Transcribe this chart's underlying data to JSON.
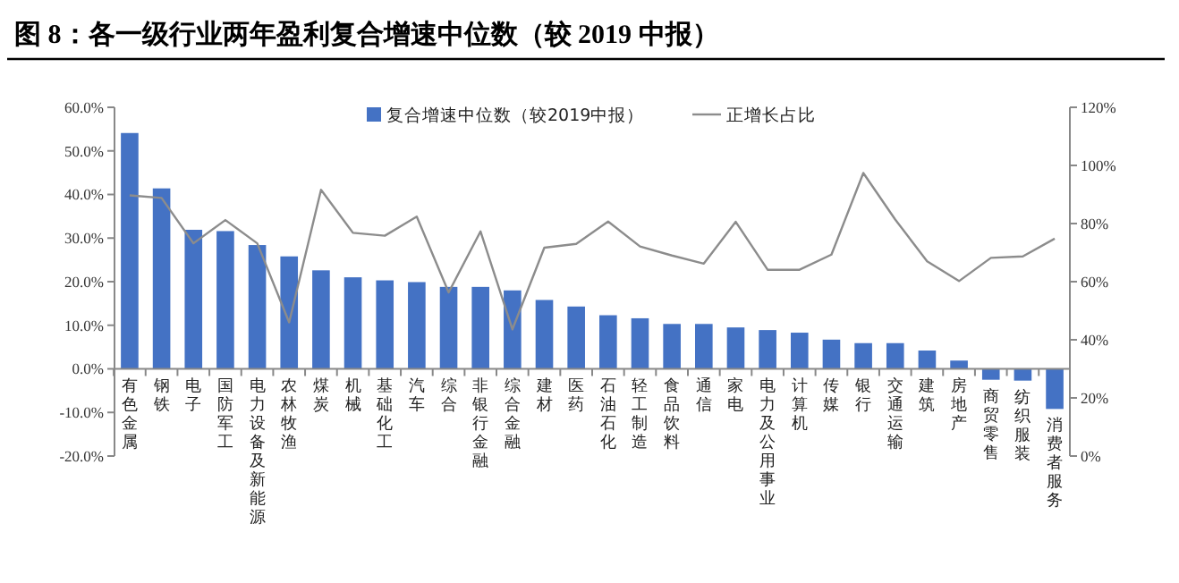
{
  "chart_data": {
    "type": "bar",
    "title": "图 8：各一级行业两年盈利复合增速中位数（较 2019 中报）",
    "categories": [
      "有色金属",
      "钢铁",
      "电子",
      "国防军工",
      "电力设备及新能源",
      "农林牧渔",
      "煤炭",
      "机械",
      "基础化工",
      "汽车",
      "综合",
      "非银行金融",
      "综合金融",
      "建材",
      "医药",
      "石油石化",
      "轻工制造",
      "食品饮料",
      "通信",
      "家电",
      "电力及公用事业",
      "计算机",
      "传媒",
      "银行",
      "交通运输",
      "建筑",
      "房地产",
      "商贸零售",
      "纺织服装",
      "消费者服务"
    ],
    "series": [
      {
        "name": "复合增速中位数（较2019中报）",
        "color": "#4472c4",
        "values": [
          54.1,
          41.4,
          31.9,
          31.6,
          28.4,
          25.8,
          22.6,
          21.0,
          20.3,
          19.9,
          18.8,
          18.8,
          18.0,
          15.8,
          14.3,
          12.3,
          11.6,
          10.3,
          10.3,
          9.5,
          8.9,
          8.3,
          6.7,
          5.9,
          5.9,
          4.2,
          1.9,
          -2.5,
          -2.7,
          -9.2
        ]
      },
      {
        "name": "正增长占比",
        "type": "line",
        "axis": "y2",
        "color": "#8c8c8c",
        "values": [
          89.7,
          88.8,
          73.2,
          81.2,
          73.2,
          46.0,
          91.6,
          76.8,
          75.8,
          82.4,
          56.3,
          77.3,
          43.6,
          71.7,
          73.0,
          80.7,
          72.1,
          69.0,
          66.2,
          80.6,
          64.1,
          64.1,
          69.3,
          97.4,
          81.4,
          67.0,
          60.2,
          68.2,
          68.7,
          74.8
        ]
      }
    ],
    "ylim": [
      -20,
      60
    ],
    "yticks": [
      {
        "value": -20,
        "label": "-20.0%"
      },
      {
        "value": -10,
        "label": "-10.0%"
      },
      {
        "value": 0,
        "label": "0.0%"
      },
      {
        "value": 10,
        "label": "10.0%"
      },
      {
        "value": 20,
        "label": "20.0%"
      },
      {
        "value": 30,
        "label": "30.0%"
      },
      {
        "value": 40,
        "label": "40.0%"
      },
      {
        "value": 50,
        "label": "50.0%"
      },
      {
        "value": 60,
        "label": "60.0%"
      }
    ],
    "y2lim": [
      0,
      120
    ],
    "y2ticks": [
      {
        "value": 0,
        "label": "0%"
      },
      {
        "value": 20,
        "label": "20%"
      },
      {
        "value": 40,
        "label": "40%"
      },
      {
        "value": 60,
        "label": "60%"
      },
      {
        "value": 80,
        "label": "80%"
      },
      {
        "value": 100,
        "label": "100%"
      },
      {
        "value": 120,
        "label": "120%"
      }
    ],
    "legend": "top",
    "grid": false
  }
}
